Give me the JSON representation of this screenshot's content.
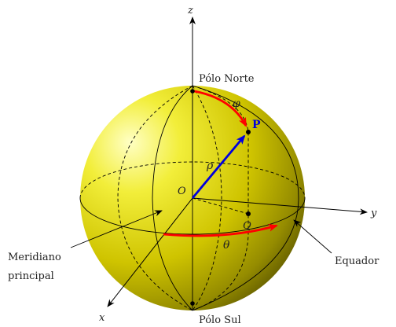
{
  "diagram": {
    "axes": {
      "x": "x",
      "y": "y",
      "z": "z"
    },
    "labels": {
      "north_pole": "Pólo Norte",
      "south_pole": "Pólo Sul",
      "equator": "Equador",
      "meridian_line1": "Meridiano",
      "meridian_line2": "principal",
      "origin": "O",
      "point_p": "P",
      "point_q": "Q",
      "rho": "ρ",
      "phi": "φ",
      "theta": "θ"
    },
    "colors": {
      "sphere_highlight": "#FFFFB0",
      "sphere_mid": "#E6E000",
      "sphere_edge": "#5A5400",
      "arc": "#FF0000",
      "vector": "#0000DD",
      "line": "#000000"
    }
  }
}
